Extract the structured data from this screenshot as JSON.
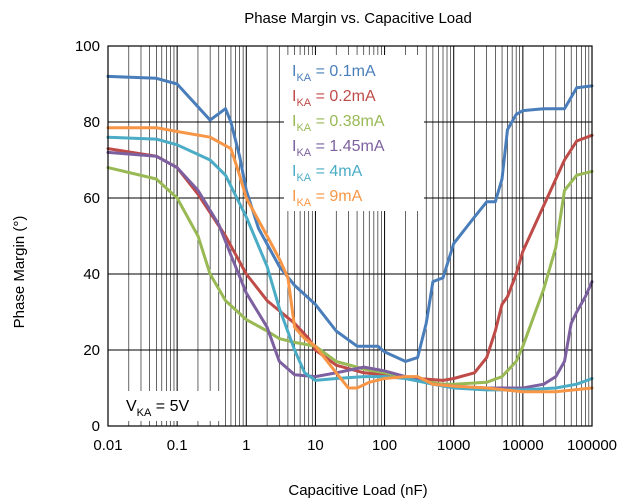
{
  "chart_data": {
    "type": "line",
    "title": "Phase Margin vs. Capacitive Load",
    "xlabel": "Capacitive Load  (nF)",
    "ylabel": "Phase Margin (°)",
    "x_scale": "log",
    "xlim": [
      0.01,
      100000
    ],
    "ylim": [
      0,
      100
    ],
    "x_ticks": [
      "0.01",
      "0.1",
      "1",
      "10",
      "100",
      "1000",
      "10000",
      "100000"
    ],
    "y_ticks": [
      "0",
      "20",
      "40",
      "60",
      "80",
      "100"
    ],
    "grid": true,
    "legend_position": "top-center",
    "annotation": {
      "main": "V",
      "sub": "KA",
      "suffix": " = 5V"
    },
    "series": [
      {
        "name": "IKA = 0.1mA",
        "label_main": "I",
        "label_sub": "KA",
        "label_suffix": " = 0.1mA",
        "color": "#4A7EBB",
        "points": [
          [
            0.01,
            92
          ],
          [
            0.05,
            91.5
          ],
          [
            0.1,
            90
          ],
          [
            0.2,
            84
          ],
          [
            0.3,
            80.5
          ],
          [
            0.5,
            83.5
          ],
          [
            0.6,
            80
          ],
          [
            0.8,
            71
          ],
          [
            1,
            62
          ],
          [
            1.5,
            52
          ],
          [
            3,
            42
          ],
          [
            5,
            37
          ],
          [
            10,
            32
          ],
          [
            20,
            25
          ],
          [
            40,
            21
          ],
          [
            80,
            21
          ],
          [
            100,
            19.5
          ],
          [
            200,
            17
          ],
          [
            300,
            18
          ],
          [
            400,
            27
          ],
          [
            500,
            38
          ],
          [
            700,
            39
          ],
          [
            1000,
            48
          ],
          [
            2000,
            55
          ],
          [
            3000,
            59
          ],
          [
            4000,
            59
          ],
          [
            5000,
            65
          ],
          [
            6000,
            78
          ],
          [
            8000,
            82
          ],
          [
            10000,
            83
          ],
          [
            20000,
            83.5
          ],
          [
            40000,
            83.5
          ],
          [
            60000,
            89
          ],
          [
            100000,
            89.5
          ]
        ]
      },
      {
        "name": "IKA = 0.2mA",
        "label_main": "I",
        "label_sub": "KA",
        "label_suffix": " = 0.2mA",
        "color": "#BE4B48",
        "points": [
          [
            0.01,
            73
          ],
          [
            0.05,
            71
          ],
          [
            0.1,
            68
          ],
          [
            0.2,
            61
          ],
          [
            0.5,
            50
          ],
          [
            1,
            40
          ],
          [
            2,
            33
          ],
          [
            5,
            27
          ],
          [
            8,
            23
          ],
          [
            10,
            20
          ],
          [
            20,
            16
          ],
          [
            50,
            14
          ],
          [
            100,
            13.5
          ],
          [
            300,
            12.5
          ],
          [
            700,
            12
          ],
          [
            1000,
            12.5
          ],
          [
            2000,
            14
          ],
          [
            3000,
            18
          ],
          [
            4000,
            25
          ],
          [
            5000,
            32
          ],
          [
            6000,
            34
          ],
          [
            8000,
            40
          ],
          [
            10000,
            46
          ],
          [
            20000,
            58
          ],
          [
            40000,
            70
          ],
          [
            60000,
            75
          ],
          [
            100000,
            76.5
          ]
        ]
      },
      {
        "name": "IKA = 0.38mA",
        "label_main": "I",
        "label_sub": "KA",
        "label_suffix": " = 0.38mA",
        "color": "#98B954",
        "points": [
          [
            0.01,
            68
          ],
          [
            0.05,
            65
          ],
          [
            0.1,
            60
          ],
          [
            0.2,
            50
          ],
          [
            0.3,
            40
          ],
          [
            0.5,
            33
          ],
          [
            1,
            28
          ],
          [
            2,
            25
          ],
          [
            3,
            23
          ],
          [
            5,
            22
          ],
          [
            10,
            21
          ],
          [
            20,
            17
          ],
          [
            50,
            15
          ],
          [
            100,
            14
          ],
          [
            300,
            12
          ],
          [
            700,
            11
          ],
          [
            1000,
            11
          ],
          [
            3000,
            11.5
          ],
          [
            5000,
            13
          ],
          [
            8000,
            17
          ],
          [
            10000,
            21
          ],
          [
            20000,
            36
          ],
          [
            30000,
            47
          ],
          [
            40000,
            62
          ],
          [
            60000,
            66
          ],
          [
            100000,
            67
          ]
        ]
      },
      {
        "name": "IKA = 1.45mA",
        "label_main": "I",
        "label_sub": "KA",
        "label_suffix": " = 1.45mA",
        "color": "#7D60A0",
        "points": [
          [
            0.01,
            72
          ],
          [
            0.05,
            71
          ],
          [
            0.1,
            68
          ],
          [
            0.2,
            62
          ],
          [
            0.4,
            53
          ],
          [
            0.6,
            45
          ],
          [
            1,
            35
          ],
          [
            2,
            26
          ],
          [
            3,
            17
          ],
          [
            5,
            13.5
          ],
          [
            10,
            13
          ],
          [
            20,
            14
          ],
          [
            50,
            15.5
          ],
          [
            100,
            14.5
          ],
          [
            200,
            13
          ],
          [
            500,
            11
          ],
          [
            1000,
            10.5
          ],
          [
            3000,
            10
          ],
          [
            10000,
            10
          ],
          [
            20000,
            11
          ],
          [
            30000,
            13
          ],
          [
            40000,
            17
          ],
          [
            50000,
            27
          ],
          [
            60000,
            30
          ],
          [
            80000,
            34
          ],
          [
            100000,
            38
          ]
        ]
      },
      {
        "name": "IKA = 4mA",
        "label_main": "I",
        "label_sub": "KA",
        "label_suffix": " = 4mA",
        "color": "#4BACC6",
        "points": [
          [
            0.01,
            76
          ],
          [
            0.05,
            75.5
          ],
          [
            0.1,
            74
          ],
          [
            0.3,
            70
          ],
          [
            0.5,
            66
          ],
          [
            1,
            55
          ],
          [
            2,
            42
          ],
          [
            3,
            31
          ],
          [
            5,
            20
          ],
          [
            7,
            14
          ],
          [
            10,
            12
          ],
          [
            20,
            12.5
          ],
          [
            50,
            13
          ],
          [
            100,
            13
          ],
          [
            200,
            12.5
          ],
          [
            500,
            11
          ],
          [
            1000,
            10
          ],
          [
            3000,
            9.5
          ],
          [
            10000,
            9.5
          ],
          [
            30000,
            10
          ],
          [
            60000,
            11
          ],
          [
            100000,
            12.5
          ]
        ]
      },
      {
        "name": "IKA = 9mA",
        "label_main": "I",
        "label_sub": "KA",
        "label_suffix": " = 9mA",
        "color": "#F79646",
        "points": [
          [
            0.01,
            78.5
          ],
          [
            0.05,
            78.5
          ],
          [
            0.1,
            77.5
          ],
          [
            0.3,
            76
          ],
          [
            0.6,
            73
          ],
          [
            0.8,
            66
          ],
          [
            1,
            60
          ],
          [
            2,
            50
          ],
          [
            3,
            44
          ],
          [
            4,
            39
          ],
          [
            5,
            26
          ],
          [
            7,
            23
          ],
          [
            10,
            21
          ],
          [
            20,
            14
          ],
          [
            30,
            10
          ],
          [
            40,
            10
          ],
          [
            60,
            11.5
          ],
          [
            100,
            12.5
          ],
          [
            200,
            13
          ],
          [
            300,
            13
          ],
          [
            500,
            11
          ],
          [
            1000,
            10.5
          ],
          [
            3000,
            10
          ],
          [
            10000,
            9
          ],
          [
            30000,
            9
          ],
          [
            100000,
            10
          ]
        ]
      }
    ]
  }
}
